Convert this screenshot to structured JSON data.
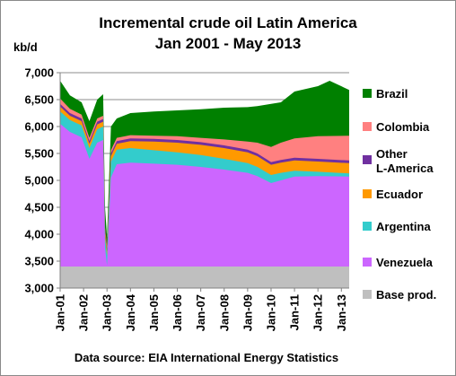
{
  "chart_data": {
    "type": "area",
    "stacked": true,
    "title_line1": "Incremental crude oil Latin America",
    "title_line2": "Jan 2001 - May 2013",
    "y_unit": "kb/d",
    "source": "Data source: EIA International Energy Statistics",
    "ylim": [
      3000,
      7000
    ],
    "y_ticks": [
      "3,000",
      "3,500",
      "4,000",
      "4,500",
      "5,000",
      "5,500",
      "6,000",
      "6,500",
      "7,000"
    ],
    "y_tick_values": [
      3000,
      3500,
      4000,
      4500,
      5000,
      5500,
      6000,
      6500,
      7000
    ],
    "x_range": [
      "2001-01",
      "2013-05"
    ],
    "x_ticks": [
      "Jan-01",
      "Jan-02",
      "Jan-03",
      "Jan-04",
      "Jan-05",
      "Jan-06",
      "Jan-07",
      "Jan-08",
      "Jan-09",
      "Jan-10",
      "Jan-11",
      "Jan-12",
      "Jan-13"
    ],
    "x_tick_dates": [
      "2001-01",
      "2002-01",
      "2003-01",
      "2004-01",
      "2005-01",
      "2006-01",
      "2007-01",
      "2008-01",
      "2009-01",
      "2010-01",
      "2011-01",
      "2012-01",
      "2013-01"
    ],
    "grid": "horizontal",
    "legend_position": "right",
    "legend_order": [
      "Brazil",
      "Colombia",
      "Other L-America",
      "Ecuador",
      "Argentina",
      "Venezuela",
      "Base prod."
    ],
    "series_upper_totals": [
      {
        "name": "Base prod.",
        "color": "#bfbfbf",
        "points": [
          [
            "2001-01",
            3400
          ],
          [
            "2013-05",
            3400
          ]
        ]
      },
      {
        "name": "Venezuela",
        "color": "#cc66ff",
        "points": [
          [
            "2001-01",
            6050
          ],
          [
            "2001-06",
            5900
          ],
          [
            "2001-12",
            5800
          ],
          [
            "2002-04",
            5400
          ],
          [
            "2002-08",
            5700
          ],
          [
            "2002-11",
            5750
          ],
          [
            "2002-12",
            3750
          ],
          [
            "2003-01",
            3420
          ],
          [
            "2003-03",
            5050
          ],
          [
            "2003-06",
            5300
          ],
          [
            "2004-01",
            5330
          ],
          [
            "2005-01",
            5310
          ],
          [
            "2006-01",
            5290
          ],
          [
            "2007-01",
            5250
          ],
          [
            "2008-01",
            5200
          ],
          [
            "2009-01",
            5140
          ],
          [
            "2009-06",
            5080
          ],
          [
            "2010-01",
            4950
          ],
          [
            "2010-06",
            5000
          ],
          [
            "2011-01",
            5070
          ],
          [
            "2012-01",
            5080
          ],
          [
            "2013-05",
            5070
          ]
        ]
      },
      {
        "name": "Argentina",
        "color": "#33cccc",
        "points": [
          [
            "2001-01",
            6280
          ],
          [
            "2001-06",
            6120
          ],
          [
            "2001-12",
            6020
          ],
          [
            "2002-04",
            5600
          ],
          [
            "2002-08",
            5950
          ],
          [
            "2002-11",
            6000
          ],
          [
            "2002-12",
            3950
          ],
          [
            "2003-01",
            3600
          ],
          [
            "2003-03",
            5350
          ],
          [
            "2003-06",
            5570
          ],
          [
            "2004-01",
            5600
          ],
          [
            "2005-01",
            5560
          ],
          [
            "2006-01",
            5520
          ],
          [
            "2007-01",
            5470
          ],
          [
            "2008-01",
            5400
          ],
          [
            "2009-01",
            5320
          ],
          [
            "2009-06",
            5250
          ],
          [
            "2010-01",
            5100
          ],
          [
            "2010-06",
            5140
          ],
          [
            "2011-01",
            5180
          ],
          [
            "2012-01",
            5160
          ],
          [
            "2013-05",
            5130
          ]
        ]
      },
      {
        "name": "Ecuador",
        "color": "#ff9900",
        "points": [
          [
            "2001-01",
            6370
          ],
          [
            "2001-06",
            6200
          ],
          [
            "2001-12",
            6100
          ],
          [
            "2002-04",
            5680
          ],
          [
            "2002-08",
            6040
          ],
          [
            "2002-11",
            6090
          ],
          [
            "2002-12",
            4030
          ],
          [
            "2003-01",
            3680
          ],
          [
            "2003-03",
            5450
          ],
          [
            "2003-06",
            5680
          ],
          [
            "2004-01",
            5730
          ],
          [
            "2005-01",
            5720
          ],
          [
            "2006-01",
            5700
          ],
          [
            "2007-01",
            5660
          ],
          [
            "2008-01",
            5600
          ],
          [
            "2009-01",
            5520
          ],
          [
            "2009-06",
            5450
          ],
          [
            "2010-01",
            5290
          ],
          [
            "2010-06",
            5330
          ],
          [
            "2011-01",
            5370
          ],
          [
            "2012-01",
            5350
          ],
          [
            "2013-05",
            5320
          ]
        ]
      },
      {
        "name": "Other L-America",
        "color": "#7030a0",
        "points": [
          [
            "2001-01",
            6420
          ],
          [
            "2001-06",
            6250
          ],
          [
            "2001-12",
            6150
          ],
          [
            "2002-04",
            5730
          ],
          [
            "2002-08",
            6090
          ],
          [
            "2002-11",
            6140
          ],
          [
            "2002-12",
            4080
          ],
          [
            "2003-01",
            3730
          ],
          [
            "2003-03",
            5500
          ],
          [
            "2003-06",
            5730
          ],
          [
            "2004-01",
            5780
          ],
          [
            "2005-01",
            5770
          ],
          [
            "2006-01",
            5750
          ],
          [
            "2007-01",
            5710
          ],
          [
            "2008-01",
            5650
          ],
          [
            "2009-01",
            5570
          ],
          [
            "2009-06",
            5500
          ],
          [
            "2010-01",
            5340
          ],
          [
            "2010-06",
            5380
          ],
          [
            "2011-01",
            5420
          ],
          [
            "2012-01",
            5400
          ],
          [
            "2013-05",
            5370
          ]
        ]
      },
      {
        "name": "Colombia",
        "color": "#ff8080",
        "points": [
          [
            "2001-01",
            6520
          ],
          [
            "2001-06",
            6330
          ],
          [
            "2001-12",
            6220
          ],
          [
            "2002-04",
            5790
          ],
          [
            "2002-08",
            6150
          ],
          [
            "2002-11",
            6200
          ],
          [
            "2002-12",
            4130
          ],
          [
            "2003-01",
            3780
          ],
          [
            "2003-03",
            5560
          ],
          [
            "2003-06",
            5790
          ],
          [
            "2004-01",
            5840
          ],
          [
            "2005-01",
            5830
          ],
          [
            "2006-01",
            5820
          ],
          [
            "2007-01",
            5790
          ],
          [
            "2008-01",
            5760
          ],
          [
            "2009-01",
            5720
          ],
          [
            "2009-06",
            5700
          ],
          [
            "2010-01",
            5620
          ],
          [
            "2010-06",
            5700
          ],
          [
            "2011-01",
            5780
          ],
          [
            "2012-01",
            5820
          ],
          [
            "2013-05",
            5830
          ]
        ]
      },
      {
        "name": "Brazil",
        "color": "#008000",
        "points": [
          [
            "2001-01",
            6850
          ],
          [
            "2001-06",
            6580
          ],
          [
            "2001-12",
            6450
          ],
          [
            "2002-04",
            6100
          ],
          [
            "2002-08",
            6500
          ],
          [
            "2002-11",
            6600
          ],
          [
            "2002-12",
            4500
          ],
          [
            "2003-01",
            3950
          ],
          [
            "2003-03",
            6000
          ],
          [
            "2003-06",
            6150
          ],
          [
            "2004-01",
            6250
          ],
          [
            "2005-01",
            6280
          ],
          [
            "2006-01",
            6300
          ],
          [
            "2007-01",
            6320
          ],
          [
            "2008-01",
            6350
          ],
          [
            "2009-01",
            6360
          ],
          [
            "2009-06",
            6380
          ],
          [
            "2010-01",
            6420
          ],
          [
            "2010-06",
            6450
          ],
          [
            "2011-01",
            6650
          ],
          [
            "2012-01",
            6750
          ],
          [
            "2012-07",
            6850
          ],
          [
            "2013-05",
            6680
          ]
        ]
      }
    ]
  }
}
